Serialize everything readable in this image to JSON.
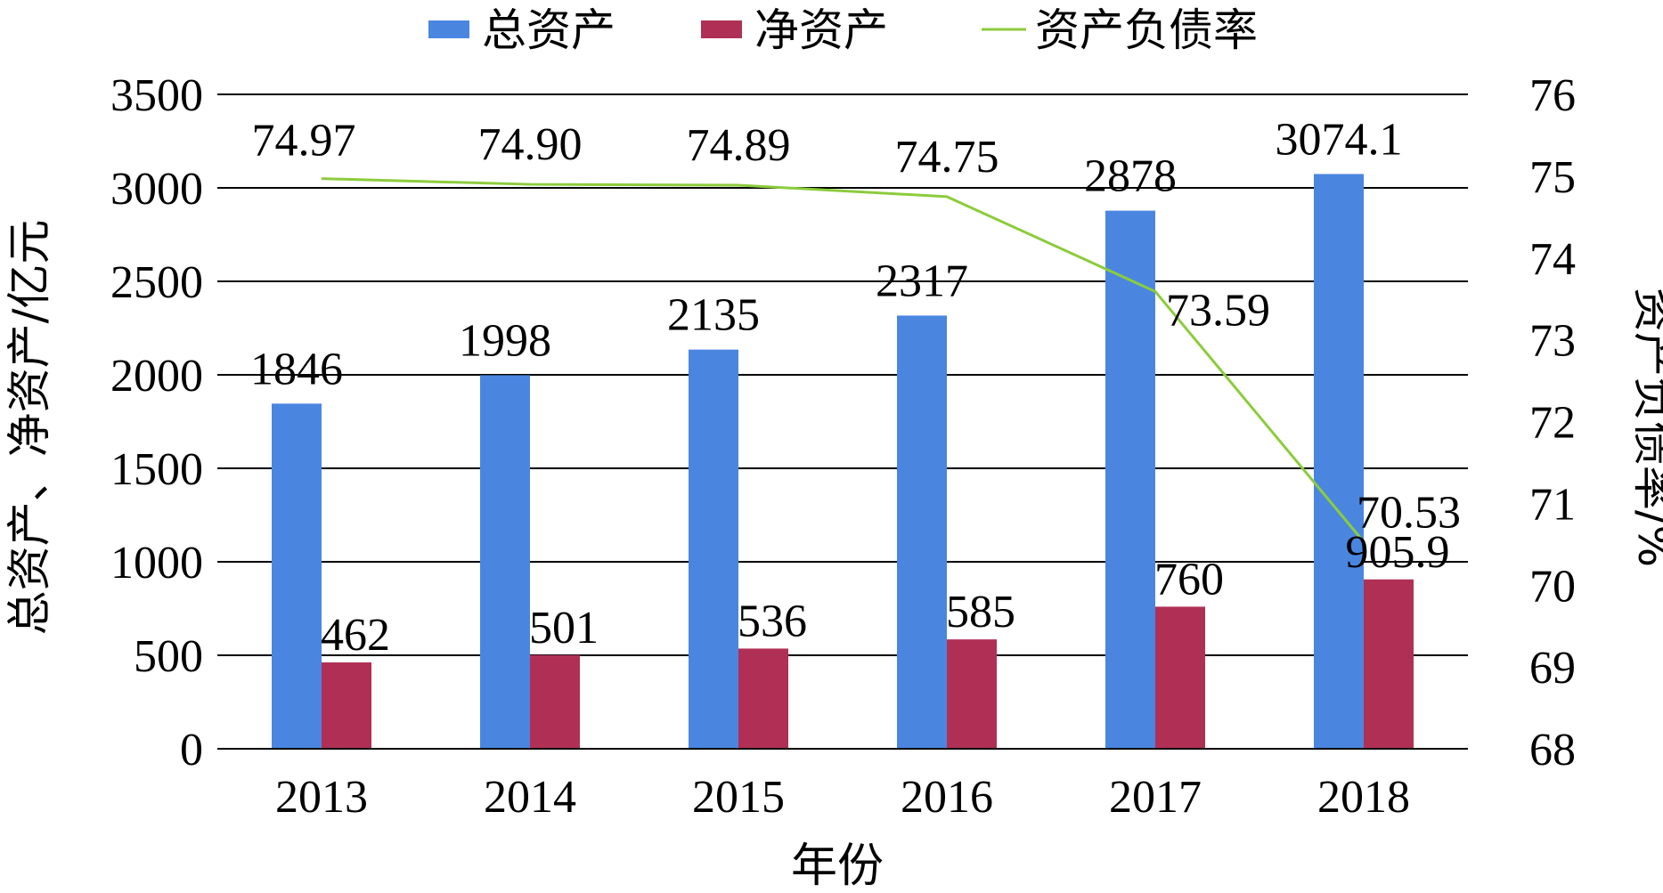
{
  "chart_data": {
    "type": "bar",
    "categories": [
      "2013",
      "2014",
      "2015",
      "2016",
      "2017",
      "2018"
    ],
    "xlabel": "年份",
    "ylabel_left": "总资产、净资产/亿元",
    "ylabel_right": "资产负债率/%",
    "ylim_left": [
      0,
      3500
    ],
    "yticks_left": [
      "0",
      "500",
      "1000",
      "1500",
      "2000",
      "2500",
      "3000",
      "3500"
    ],
    "ylim_right": [
      68,
      76
    ],
    "yticks_right": [
      "68",
      "69",
      "70",
      "71",
      "72",
      "73",
      "74",
      "75",
      "76"
    ],
    "grid": true,
    "legend_position": "top",
    "series": [
      {
        "name": "总资产",
        "type": "bar",
        "axis": "left",
        "color": "#4A86E0",
        "values": [
          1846,
          1998,
          2135,
          2317,
          2878,
          3074.1
        ],
        "labels": [
          "1846",
          "1998",
          "2135",
          "2317",
          "2878",
          "3074.1"
        ]
      },
      {
        "name": "净资产",
        "type": "bar",
        "axis": "left",
        "color": "#B03055",
        "values": [
          462,
          501,
          536,
          585,
          760,
          905.9
        ],
        "labels": [
          "462",
          "501",
          "536",
          "585",
          "760",
          "905.9"
        ]
      },
      {
        "name": "资产负债率",
        "type": "line",
        "axis": "right",
        "color": "#8CCC3C",
        "values": [
          74.97,
          74.9,
          74.89,
          74.75,
          73.59,
          70.53
        ],
        "labels": [
          "74.97",
          "74.90",
          "74.89",
          "74.75",
          "73.59",
          "70.53"
        ]
      }
    ]
  }
}
